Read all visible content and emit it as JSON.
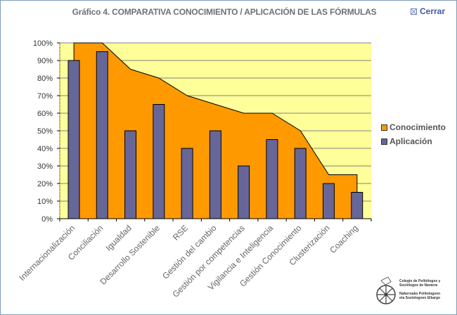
{
  "header": {
    "title": "Gráfico 4. COMPARATIVA CONOCIMIENTO / APLICACIÓN DE LAS FÓRMULAS",
    "close_label": "Cerrar",
    "close_icon": "close-box-icon"
  },
  "colors": {
    "conocimiento": "#ff9900",
    "aplicacion": "#666699",
    "plot_background": "#ffff99",
    "close_link": "#3c5aa8"
  },
  "legend": {
    "items": [
      {
        "label": "Conocimiento",
        "color": "#ff9900"
      },
      {
        "label": "Aplicación",
        "color": "#666699"
      }
    ]
  },
  "logo": {
    "line1": "Colegio de Politólogos y",
    "line2": "Sociólogos de Navarra",
    "line3": "Nafarroako Politologoen",
    "line4": "eta Soziologoen Elkargo"
  },
  "chart_data": {
    "type": "bar",
    "title": "Gráfico 4. COMPARATIVA CONOCIMIENTO / APLICACIÓN DE LAS FÓRMULAS",
    "xlabel": "",
    "ylabel": "",
    "ylim": [
      0,
      100
    ],
    "yticks": [
      "0%",
      "10%",
      "20%",
      "30%",
      "40%",
      "50%",
      "60%",
      "70%",
      "80%",
      "90%",
      "100%"
    ],
    "grid": true,
    "legend_position": "right",
    "categories": [
      "Internacionalización",
      "Conciliación",
      "Igualdad",
      "Desarrollo Sostenible",
      "RSE",
      "Gestión del cambio",
      "Gestión por competencias",
      "Vigilancia e Inteligencia",
      "Gestión Conocimiento",
      "Clusterización",
      "Coaching"
    ],
    "series": [
      {
        "name": "Conocimiento",
        "type": "area",
        "color": "#ff9900",
        "values": [
          100,
          100,
          85,
          80,
          70,
          65,
          60,
          60,
          50,
          25,
          25
        ]
      },
      {
        "name": "Aplicación",
        "type": "bar",
        "color": "#666699",
        "values": [
          90,
          95,
          50,
          65,
          40,
          50,
          30,
          45,
          40,
          20,
          15
        ]
      }
    ]
  }
}
